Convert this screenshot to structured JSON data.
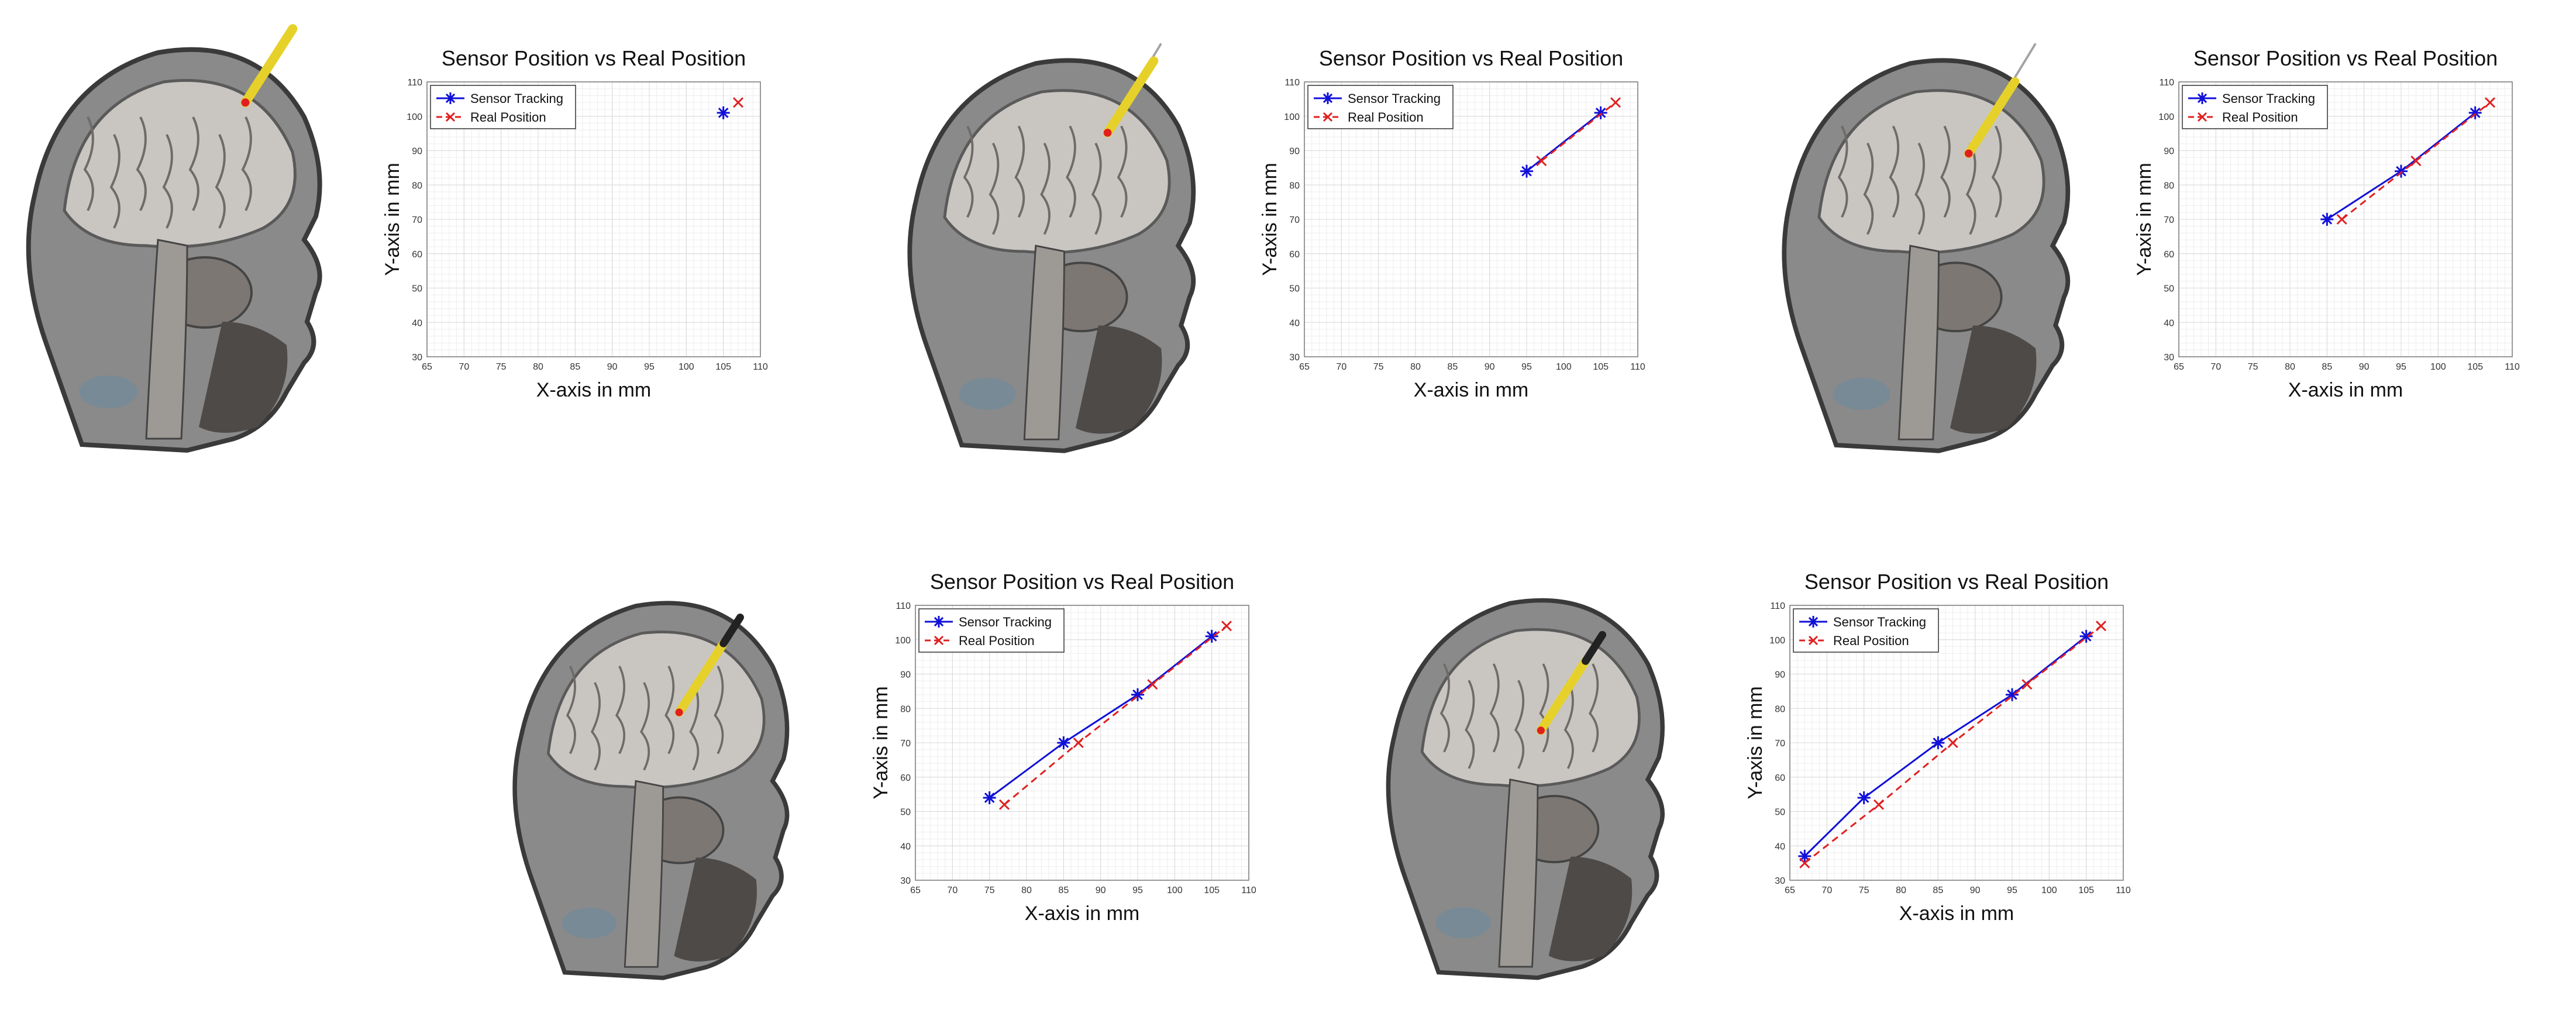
{
  "colors": {
    "sensor": "#1010d8",
    "real": "#e02020",
    "grid_minor": "#eeeeee",
    "grid_major": "#d8d8d8",
    "needle_yellow": "#e6d12a",
    "needle_dark": "#222222"
  },
  "icons": {
    "figure": "mri-head-with-needle"
  },
  "chart_data": [
    {
      "type": "line",
      "title": "Sensor Position vs Real Position",
      "xlabel": "X-axis in mm",
      "ylabel": "Y-axis in mm",
      "xlim": [
        65,
        110
      ],
      "ylim": [
        30,
        110
      ],
      "xticks": [
        65,
        70,
        75,
        80,
        85,
        90,
        95,
        100,
        105,
        110
      ],
      "yticks": [
        30,
        40,
        50,
        60,
        70,
        80,
        90,
        100,
        110
      ],
      "grid": true,
      "legend": "top-left",
      "series": [
        {
          "name": "Sensor Tracking",
          "marker": "asterisk",
          "line": "solid",
          "x": [
            105
          ],
          "y": [
            101
          ]
        },
        {
          "name": "Real Position",
          "marker": "x",
          "line": "dashed",
          "x": [
            107
          ],
          "y": [
            104
          ]
        }
      ]
    },
    {
      "type": "line",
      "title": "Sensor Position vs Real Position",
      "xlabel": "X-axis in mm",
      "ylabel": "Y-axis in mm",
      "xlim": [
        65,
        110
      ],
      "ylim": [
        30,
        110
      ],
      "xticks": [
        65,
        70,
        75,
        80,
        85,
        90,
        95,
        100,
        105,
        110
      ],
      "yticks": [
        30,
        40,
        50,
        60,
        70,
        80,
        90,
        100,
        110
      ],
      "grid": true,
      "legend": "top-left",
      "series": [
        {
          "name": "Sensor Tracking",
          "marker": "asterisk",
          "line": "solid",
          "x": [
            95,
            105
          ],
          "y": [
            84,
            101
          ]
        },
        {
          "name": "Real Position",
          "marker": "x",
          "line": "dashed",
          "x": [
            97,
            107
          ],
          "y": [
            87,
            104
          ]
        }
      ]
    },
    {
      "type": "line",
      "title": "Sensor Position vs Real Position",
      "xlabel": "X-axis in mm",
      "ylabel": "Y-axis in mm",
      "xlim": [
        65,
        110
      ],
      "ylim": [
        30,
        110
      ],
      "xticks": [
        65,
        70,
        75,
        80,
        85,
        90,
        95,
        100,
        105,
        110
      ],
      "yticks": [
        30,
        40,
        50,
        60,
        70,
        80,
        90,
        100,
        110
      ],
      "grid": true,
      "legend": "top-left",
      "series": [
        {
          "name": "Sensor Tracking",
          "marker": "asterisk",
          "line": "solid",
          "x": [
            85,
            95,
            105
          ],
          "y": [
            70,
            84,
            101
          ]
        },
        {
          "name": "Real Position",
          "marker": "x",
          "line": "dashed",
          "x": [
            87,
            97,
            107
          ],
          "y": [
            70,
            87,
            104
          ]
        }
      ]
    },
    {
      "type": "line",
      "title": "Sensor Position vs Real Position",
      "xlabel": "X-axis in mm",
      "ylabel": "Y-axis in mm",
      "xlim": [
        65,
        110
      ],
      "ylim": [
        30,
        110
      ],
      "xticks": [
        65,
        70,
        75,
        80,
        85,
        90,
        95,
        100,
        105,
        110
      ],
      "yticks": [
        30,
        40,
        50,
        60,
        70,
        80,
        90,
        100,
        110
      ],
      "grid": true,
      "legend": "top-left",
      "series": [
        {
          "name": "Sensor Tracking",
          "marker": "asterisk",
          "line": "solid",
          "x": [
            75,
            85,
            95,
            105
          ],
          "y": [
            54,
            70,
            84,
            101
          ]
        },
        {
          "name": "Real Position",
          "marker": "x",
          "line": "dashed",
          "x": [
            77,
            87,
            97,
            107
          ],
          "y": [
            52,
            70,
            87,
            104
          ]
        }
      ]
    },
    {
      "type": "line",
      "title": "Sensor Position vs Real Position",
      "xlabel": "X-axis in mm",
      "ylabel": "Y-axis in mm",
      "xlim": [
        65,
        110
      ],
      "ylim": [
        30,
        110
      ],
      "xticks": [
        65,
        70,
        75,
        80,
        85,
        90,
        95,
        100,
        105,
        110
      ],
      "yticks": [
        30,
        40,
        50,
        60,
        70,
        80,
        90,
        100,
        110
      ],
      "grid": true,
      "legend": "top-left",
      "series": [
        {
          "name": "Sensor Tracking",
          "marker": "asterisk",
          "line": "solid",
          "x": [
            67,
            75,
            85,
            95,
            105
          ],
          "y": [
            37,
            54,
            70,
            84,
            101
          ]
        },
        {
          "name": "Real Position",
          "marker": "x",
          "line": "dashed",
          "x": [
            67,
            77,
            87,
            97,
            107
          ],
          "y": [
            35,
            52,
            70,
            87,
            104
          ]
        }
      ]
    }
  ]
}
